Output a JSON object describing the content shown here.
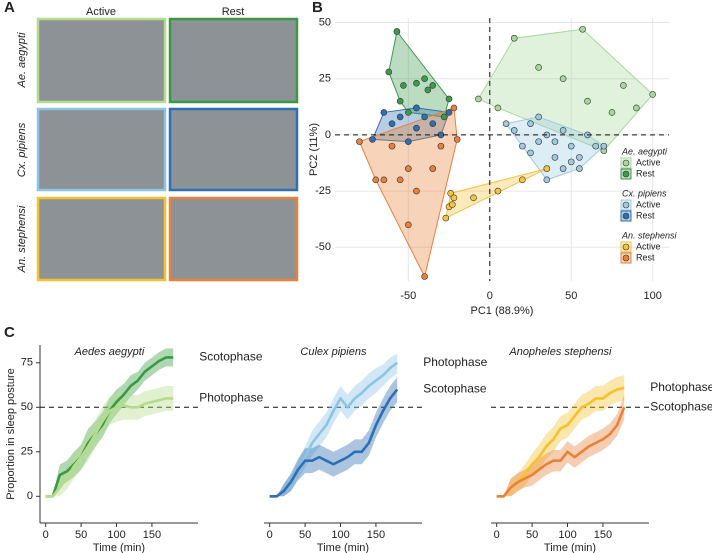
{
  "panel_labels": [
    "A",
    "B",
    "C"
  ],
  "photo_grid": {
    "columns": [
      "Active",
      "Rest"
    ],
    "rows": [
      "Ae. aegypti",
      "Cx. pipiens",
      "An. stephensi"
    ]
  },
  "chart_data": [
    {
      "type": "scatter",
      "xlabel": "PC1 (88.9%)",
      "ylabel": "PC2 (11%)",
      "xlim": [
        -95,
        110
      ],
      "ylim": [
        -65,
        52
      ],
      "xticks": [
        -50,
        0,
        50,
        100
      ],
      "yticks": [
        -50,
        -25,
        0,
        25,
        50
      ],
      "grid": true,
      "reference_lines": {
        "x": [
          0
        ],
        "y": [
          0
        ]
      },
      "groups": [
        {
          "name": "Ae. aegypti",
          "series": [
            {
              "name": "Active",
              "color": "#a6d89a",
              "x": [
                15,
                57,
                100,
                82,
                90,
                -7,
                5,
                30,
                45,
                60,
                75,
                70
              ],
              "y": [
                43,
                47,
                18,
                22,
                12,
                16,
                12,
                30,
                25,
                15,
                10,
                -7
              ]
            },
            {
              "name": "Rest",
              "color": "#3d9a4a",
              "x": [
                -57,
                -62,
                -53,
                -45,
                -40,
                -38,
                -35,
                -25,
                -28,
                -45,
                -55,
                -50
              ],
              "y": [
                46,
                28,
                22,
                23,
                25,
                20,
                22,
                16,
                8,
                12,
                15,
                10
              ]
            }
          ]
        },
        {
          "name": "Cx. pipiens",
          "series": [
            {
              "name": "Active",
              "color": "#9ecae1",
              "x": [
                10,
                15,
                20,
                25,
                30,
                35,
                40,
                45,
                50,
                55,
                60,
                65,
                70,
                35,
                45,
                55,
                25,
                40,
                50,
                30
              ],
              "y": [
                5,
                2,
                -5,
                5,
                8,
                0,
                -3,
                2,
                -5,
                -10,
                0,
                -5,
                -5,
                -20,
                -15,
                -15,
                -8,
                -10,
                -12,
                -3
              ]
            },
            {
              "name": "Rest",
              "color": "#2f6fb0",
              "x": [
                -72,
                -65,
                -55,
                -45,
                -40,
                -35,
                -25,
                -30,
                -50,
                -60,
                -45
              ],
              "y": [
                -2,
                10,
                8,
                12,
                8,
                5,
                10,
                0,
                -3,
                5,
                3
              ]
            }
          ]
        },
        {
          "name": "An. stephensi",
          "series": [
            {
              "name": "Active",
              "color": "#f5c242",
              "x": [
                -25,
                -24,
                -27,
                -22,
                20,
                35,
                -10,
                5,
                -23
              ],
              "y": [
                -32,
                -26,
                -37,
                -28,
                -20,
                -15,
                -28,
                -25,
                -31
              ]
            },
            {
              "name": "Rest",
              "color": "#e8813a",
              "x": [
                -80,
                -40,
                -22,
                -20,
                -60,
                -50,
                -55,
                -35,
                -45,
                -30,
                -65,
                -50,
                -70
              ],
              "y": [
                -3,
                -63,
                12,
                -2,
                -5,
                -15,
                -20,
                -15,
                -25,
                -5,
                -20,
                -40,
                -20
              ]
            }
          ]
        }
      ]
    },
    {
      "type": "line",
      "title": "Aedes aegypti",
      "xlabel": "Time (min)",
      "ylabel": "Proportion in sleep posture",
      "x": [
        0,
        10,
        20,
        30,
        40,
        50,
        60,
        70,
        80,
        90,
        100,
        110,
        120,
        130,
        140,
        150,
        160,
        170,
        180
      ],
      "xlim": [
        -8,
        215
      ],
      "ylim": [
        -15,
        85
      ],
      "xticks": [
        0,
        50,
        100,
        150
      ],
      "yticks": [
        0,
        25,
        50,
        75
      ],
      "reference_lines": {
        "y": [
          50
        ]
      },
      "series": [
        {
          "name": "Scotophase",
          "color": "#3a9a42",
          "values": [
            0,
            0,
            12,
            14,
            18,
            22,
            30,
            35,
            40,
            48,
            53,
            57,
            62,
            65,
            70,
            73,
            76,
            78,
            78
          ],
          "lower": [
            0,
            0,
            6,
            8,
            11,
            15,
            22,
            28,
            33,
            41,
            46,
            51,
            56,
            60,
            65,
            68,
            71,
            73,
            73
          ],
          "upper": [
            0,
            0,
            18,
            20,
            25,
            29,
            38,
            42,
            47,
            55,
            60,
            63,
            68,
            70,
            75,
            78,
            81,
            83,
            83
          ]
        },
        {
          "name": "Photophase",
          "color": "#b5dc8a",
          "values": [
            0,
            0,
            5,
            10,
            17,
            22,
            28,
            35,
            42,
            48,
            50,
            51,
            50,
            50,
            52,
            53,
            54,
            55,
            55
          ],
          "lower": [
            0,
            0,
            0,
            4,
            10,
            15,
            20,
            27,
            34,
            40,
            42,
            43,
            43,
            43,
            45,
            46,
            47,
            48,
            48
          ],
          "upper": [
            0,
            0,
            10,
            16,
            24,
            29,
            36,
            43,
            50,
            56,
            58,
            59,
            57,
            57,
            59,
            60,
            61,
            62,
            62
          ]
        }
      ]
    },
    {
      "type": "line",
      "title": "Culex pipiens",
      "xlabel": "Time (min)",
      "x": [
        0,
        10,
        20,
        30,
        40,
        50,
        60,
        70,
        80,
        90,
        100,
        110,
        120,
        130,
        140,
        150,
        160,
        170,
        180
      ],
      "xlim": [
        -8,
        215
      ],
      "ylim": [
        -15,
        85
      ],
      "xticks": [
        0,
        50,
        100,
        150
      ],
      "reference_lines": {
        "y": [
          50
        ]
      },
      "series": [
        {
          "name": "Photophase",
          "color": "#8cc4e8",
          "values": [
            0,
            0,
            3,
            7,
            15,
            22,
            30,
            35,
            40,
            48,
            55,
            50,
            55,
            58,
            62,
            65,
            68,
            72,
            75
          ],
          "lower": [
            0,
            0,
            0,
            3,
            10,
            16,
            23,
            28,
            33,
            41,
            48,
            43,
            48,
            51,
            55,
            58,
            62,
            66,
            69
          ],
          "upper": [
            0,
            0,
            7,
            12,
            20,
            28,
            37,
            42,
            47,
            55,
            62,
            57,
            62,
            65,
            69,
            72,
            74,
            78,
            80
          ]
        },
        {
          "name": "Scotophase",
          "color": "#2c6fb3",
          "values": [
            0,
            0,
            3,
            8,
            15,
            20,
            20,
            22,
            20,
            18,
            20,
            22,
            25,
            25,
            30,
            40,
            48,
            55,
            60
          ],
          "lower": [
            0,
            0,
            0,
            3,
            9,
            13,
            13,
            15,
            13,
            11,
            13,
            15,
            18,
            18,
            23,
            33,
            41,
            48,
            53
          ],
          "upper": [
            0,
            0,
            7,
            13,
            21,
            27,
            27,
            29,
            27,
            25,
            27,
            29,
            32,
            32,
            37,
            47,
            55,
            62,
            67
          ]
        }
      ]
    },
    {
      "type": "line",
      "title": "Anopheles stephensi",
      "xlabel": "Time (min)",
      "x": [
        0,
        10,
        20,
        30,
        40,
        50,
        60,
        70,
        80,
        90,
        100,
        110,
        120,
        130,
        140,
        150,
        160,
        170,
        180
      ],
      "xlim": [
        -8,
        215
      ],
      "ylim": [
        -15,
        85
      ],
      "xticks": [
        0,
        50,
        100,
        150
      ],
      "reference_lines": {
        "y": [
          50
        ]
      },
      "series": [
        {
          "name": "Photophase",
          "color": "#f6c12e",
          "values": [
            0,
            0,
            5,
            8,
            12,
            18,
            22,
            28,
            32,
            38,
            40,
            45,
            50,
            52,
            55,
            55,
            58,
            60,
            61
          ],
          "lower": [
            0,
            0,
            0,
            3,
            6,
            12,
            15,
            21,
            25,
            31,
            33,
            38,
            43,
            45,
            48,
            48,
            51,
            53,
            54
          ],
          "upper": [
            0,
            0,
            10,
            13,
            18,
            24,
            29,
            35,
            39,
            45,
            47,
            52,
            57,
            59,
            62,
            62,
            65,
            67,
            68
          ]
        },
        {
          "name": "Scotophase",
          "color": "#e8823a",
          "values": [
            0,
            0,
            5,
            8,
            10,
            12,
            15,
            18,
            20,
            20,
            25,
            22,
            25,
            28,
            30,
            32,
            35,
            40,
            50
          ],
          "lower": [
            0,
            0,
            0,
            3,
            5,
            6,
            9,
            12,
            14,
            14,
            19,
            16,
            19,
            22,
            24,
            26,
            29,
            34,
            43
          ],
          "upper": [
            0,
            0,
            10,
            13,
            15,
            18,
            21,
            24,
            26,
            26,
            31,
            28,
            31,
            34,
            36,
            38,
            41,
            46,
            57
          ]
        }
      ]
    }
  ]
}
